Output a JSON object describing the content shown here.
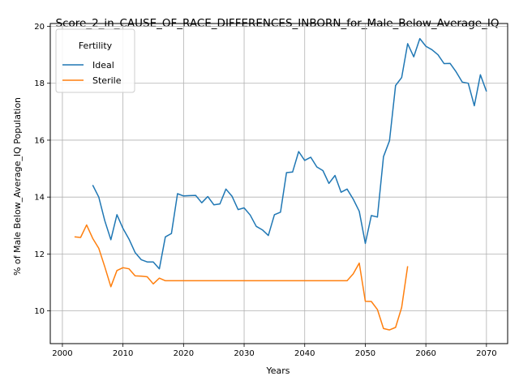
{
  "chart_data": {
    "type": "line",
    "title": "Score_2_in_CAUSE_OF_RACE_DIFFERENCES_INBORN_for_Male_Below_Average_IQ",
    "xlabel": "Years",
    "ylabel": "% of Male Below_Average_IQ Population",
    "xlim": [
      1998,
      2073.5
    ],
    "ylim": [
      8.85,
      20.1
    ],
    "xticks": [
      2000,
      2010,
      2020,
      2030,
      2040,
      2050,
      2060,
      2070
    ],
    "yticks": [
      10,
      12,
      14,
      16,
      18,
      20
    ],
    "grid": true,
    "legend": {
      "title": "Fertility",
      "placement": "upper-left"
    },
    "series": [
      {
        "name": "Ideal",
        "color": "#1f77b4",
        "x": [
          2005,
          2006,
          2007,
          2008,
          2009,
          2010,
          2011,
          2012,
          2013,
          2014,
          2015,
          2016,
          2017,
          2018,
          2019,
          2020,
          2021,
          2022,
          2023,
          2024,
          2025,
          2026,
          2027,
          2028,
          2029,
          2030,
          2031,
          2032,
          2033,
          2034,
          2035,
          2036,
          2037,
          2038,
          2039,
          2040,
          2041,
          2042,
          2043,
          2044,
          2045,
          2046,
          2047,
          2048,
          2049,
          2050,
          2051,
          2052,
          2053,
          2054,
          2055,
          2056,
          2057,
          2058,
          2059,
          2060,
          2061,
          2062,
          2063,
          2064,
          2065,
          2066,
          2067,
          2068,
          2069,
          2070
        ],
        "y": [
          14.42,
          14.0,
          13.17,
          12.5,
          13.38,
          12.9,
          12.52,
          12.05,
          11.8,
          11.72,
          11.72,
          11.48,
          12.6,
          12.72,
          14.12,
          14.04,
          14.05,
          14.06,
          13.8,
          14.02,
          13.73,
          13.76,
          14.28,
          14.03,
          13.56,
          13.62,
          13.37,
          12.97,
          12.85,
          12.65,
          13.38,
          13.47,
          14.86,
          14.88,
          15.6,
          15.29,
          15.4,
          15.06,
          14.93,
          14.48,
          14.76,
          14.17,
          14.28,
          13.93,
          13.5,
          12.37,
          13.35,
          13.3,
          15.42,
          15.98,
          17.92,
          18.2,
          19.39,
          18.93,
          19.57,
          19.3,
          19.18,
          19.0,
          18.69,
          18.7,
          18.4,
          18.04,
          18.0,
          17.21,
          18.3,
          17.71
        ]
      },
      {
        "name": "Sterile",
        "color": "#ff7f0e",
        "x": [
          2002,
          2003,
          2004,
          2005,
          2006,
          2007,
          2008,
          2009,
          2010,
          2011,
          2012,
          2013,
          2014,
          2015,
          2016,
          2017,
          2018,
          2019,
          2020,
          2021,
          2022,
          2023,
          2024,
          2025,
          2026,
          2027,
          2028,
          2029,
          2030,
          2031,
          2032,
          2033,
          2034,
          2035,
          2036,
          2037,
          2038,
          2039,
          2040,
          2041,
          2042,
          2043,
          2044,
          2045,
          2046,
          2047,
          2048,
          2049,
          2050,
          2051,
          2052,
          2053,
          2054,
          2055,
          2056,
          2057
        ],
        "y": [
          12.6,
          12.58,
          13.02,
          12.55,
          12.2,
          11.55,
          10.85,
          11.42,
          11.52,
          11.48,
          11.23,
          11.22,
          11.2,
          10.95,
          11.15,
          11.06,
          11.06,
          11.06,
          11.06,
          11.06,
          11.06,
          11.06,
          11.06,
          11.06,
          11.06,
          11.06,
          11.06,
          11.06,
          11.06,
          11.06,
          11.06,
          11.06,
          11.06,
          11.06,
          11.06,
          11.06,
          11.06,
          11.06,
          11.06,
          11.06,
          11.06,
          11.06,
          11.06,
          11.06,
          11.06,
          11.06,
          11.3,
          11.68,
          10.34,
          10.33,
          10.05,
          9.38,
          9.33,
          9.42,
          10.12,
          11.57
        ]
      }
    ]
  }
}
